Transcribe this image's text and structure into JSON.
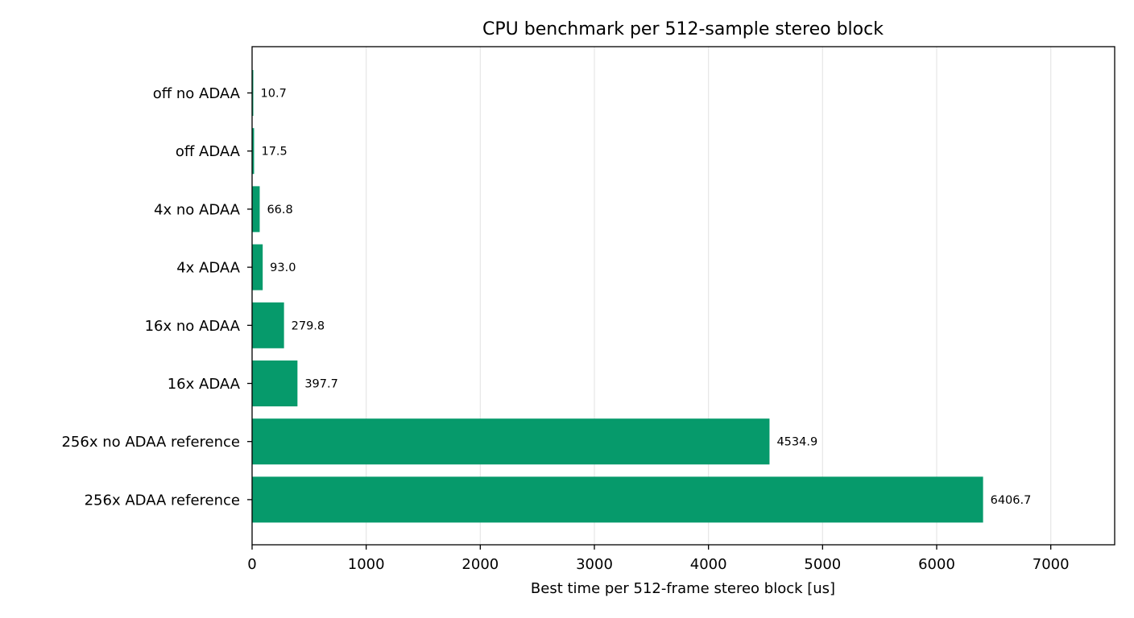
{
  "chart_data": {
    "type": "bar",
    "orientation": "horizontal",
    "title": "CPU benchmark per 512-sample stereo block",
    "xlabel": "Best time per 512-frame stereo block [us]",
    "ylabel": "",
    "categories": [
      "off no ADAA",
      "off ADAA",
      "4x no ADAA",
      "4x ADAA",
      "16x no ADAA",
      "16x ADAA",
      "256x no ADAA reference",
      "256x ADAA reference"
    ],
    "values": [
      10.7,
      17.5,
      66.8,
      93.0,
      279.8,
      397.7,
      4534.9,
      6406.7
    ],
    "data_labels": [
      "10.7",
      "17.5",
      "66.8",
      "93.0",
      "279.8",
      "397.7",
      "4534.9",
      "6406.7"
    ],
    "xlim": [
      0,
      7560
    ],
    "xticks": [
      0,
      1000,
      2000,
      3000,
      4000,
      5000,
      6000,
      7000
    ],
    "xtick_labels": [
      "0",
      "1000",
      "2000",
      "3000",
      "4000",
      "5000",
      "6000",
      "7000"
    ],
    "grid": "vertical",
    "bar_color": "#069a6b"
  }
}
